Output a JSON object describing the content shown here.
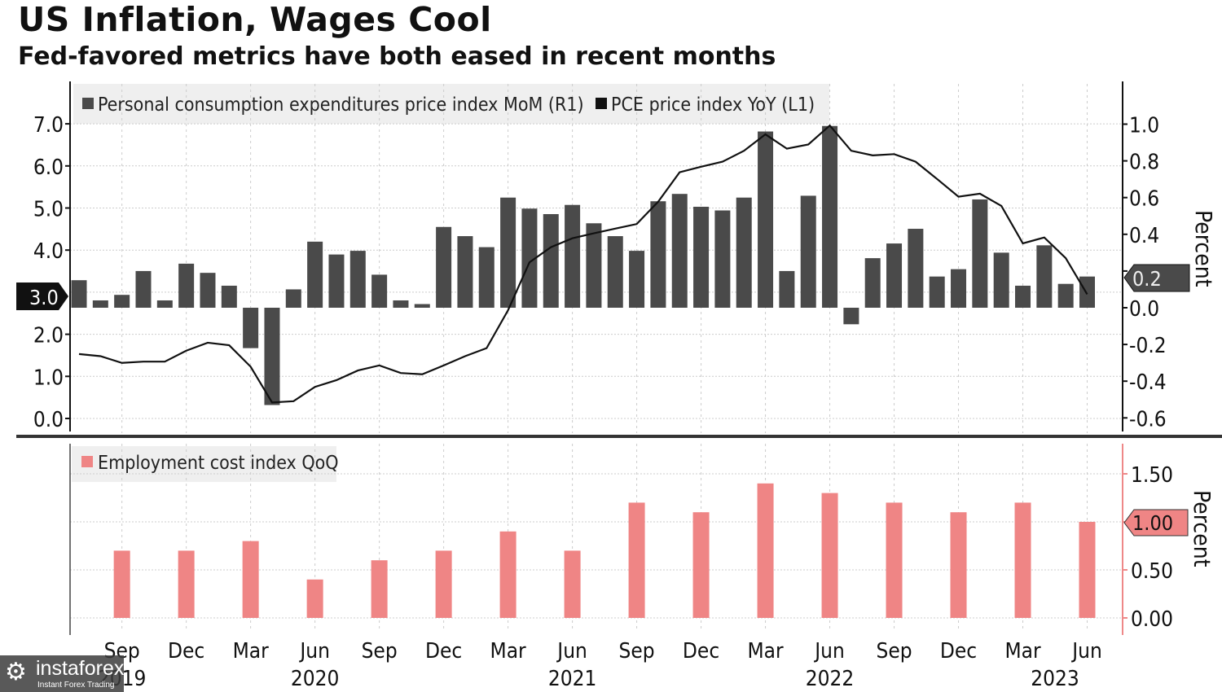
{
  "header": {
    "title": "US Inflation, Wages Cool",
    "subtitle": "Fed-favored metrics have both eased in recent months"
  },
  "watermark": {
    "name": "instaforex",
    "tagline": "Instant Forex Trading"
  },
  "chart_data": [
    {
      "type": "bar+line",
      "panel": "top",
      "legend": [
        "Personal consumption expenditures price index MoM (R1)",
        "PCE price index YoY (L1)"
      ],
      "legend_placement": "top-left",
      "right_axis_label": "Percent",
      "left_ylim": [
        0,
        7.5
      ],
      "left_ticks": [
        "0.0",
        "1.0",
        "2.0",
        "3.0",
        "4.0",
        "5.0",
        "6.0",
        "7.0"
      ],
      "right_ylim": [
        -0.6,
        1.0
      ],
      "right_ticks": [
        "1.0",
        "0.8",
        "0.6",
        "0.4",
        "0.2",
        "0.0",
        "-0.2",
        "-0.4",
        "-0.6"
      ],
      "grid": true,
      "x_start": "2019-07",
      "x_end": "2023-06",
      "x_frequency": "monthly",
      "last_value_labels": {
        "left": "3.0",
        "right": "0.2"
      },
      "series": [
        {
          "name": "Personal consumption expenditures price index MoM (R1)",
          "axis": "right",
          "type": "bar",
          "color": "#4a4a4a",
          "values": [
            0.15,
            0.04,
            0.07,
            0.2,
            0.04,
            0.24,
            0.19,
            0.12,
            -0.22,
            -0.53,
            0.1,
            0.36,
            0.29,
            0.31,
            0.18,
            0.04,
            0.02,
            0.44,
            0.39,
            0.33,
            0.6,
            0.54,
            0.51,
            0.56,
            0.46,
            0.39,
            0.31,
            0.58,
            0.62,
            0.55,
            0.53,
            0.6,
            0.96,
            0.2,
            0.61,
            0.99,
            -0.09,
            0.27,
            0.35,
            0.43,
            0.17,
            0.21,
            0.59,
            0.3,
            0.12,
            0.34,
            0.13,
            0.17
          ]
        },
        {
          "name": "PCE price index YoY (L1)",
          "axis": "left",
          "type": "line",
          "color": "#111111",
          "values": [
            1.53,
            1.48,
            1.32,
            1.35,
            1.35,
            1.61,
            1.8,
            1.74,
            1.23,
            0.38,
            0.41,
            0.75,
            0.91,
            1.14,
            1.26,
            1.08,
            1.05,
            1.26,
            1.48,
            1.67,
            2.57,
            3.71,
            4.07,
            4.28,
            4.4,
            4.51,
            4.62,
            5.15,
            5.85,
            5.98,
            6.1,
            6.36,
            6.75,
            6.41,
            6.51,
            6.96,
            6.36,
            6.25,
            6.28,
            6.1,
            5.69,
            5.27,
            5.34,
            5.05,
            4.16,
            4.3,
            3.81,
            2.95
          ]
        }
      ]
    },
    {
      "type": "bar",
      "panel": "bottom",
      "legend": [
        "Employment cost index QoQ"
      ],
      "legend_placement": "top-left",
      "right_axis_label": "Percent",
      "ylim": [
        0,
        1.8
      ],
      "ticks": [
        "1.50",
        "1.00",
        "0.50",
        "0.00"
      ],
      "grid": true,
      "last_value_label": "1.00",
      "categories": [
        "Sep 2019",
        "Dec 2019",
        "Mar 2020",
        "Jun 2020",
        "Sep 2020",
        "Dec 2020",
        "Mar 2021",
        "Jun 2021",
        "Sep 2021",
        "Dec 2021",
        "Mar 2022",
        "Jun 2022",
        "Sep 2022",
        "Dec 2022",
        "Mar 2023",
        "Jun 2023"
      ],
      "series": [
        {
          "name": "Employment cost index QoQ",
          "color": "#ef8585",
          "values": [
            0.7,
            0.7,
            0.8,
            0.4,
            0.6,
            0.7,
            0.9,
            0.7,
            1.2,
            1.1,
            1.4,
            1.3,
            1.2,
            1.1,
            1.2,
            1.0
          ]
        }
      ]
    }
  ],
  "x_axis": {
    "month_labels": [
      "Sep",
      "Dec",
      "Mar",
      "Jun",
      "Sep",
      "Dec",
      "Mar",
      "Jun",
      "Sep",
      "Dec",
      "Mar",
      "Jun",
      "Sep",
      "Dec",
      "Mar",
      "Jun"
    ],
    "year_labels": [
      "2019",
      "2020",
      "2021",
      "2022",
      "2023"
    ]
  }
}
